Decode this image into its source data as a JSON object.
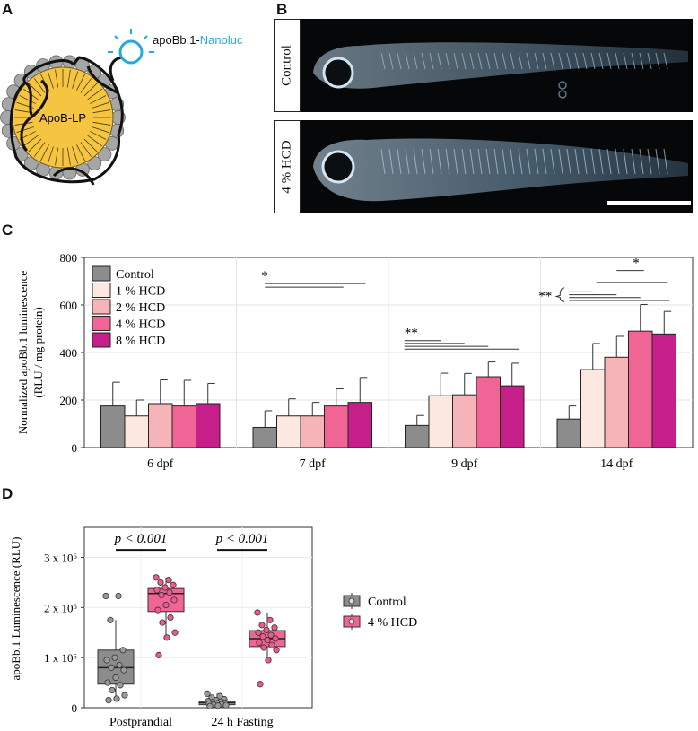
{
  "panels": {
    "a": {
      "letter": "A",
      "particle_label": "ApoB-LP",
      "tag_prefix": "apoBb.1-",
      "tag_suffix": "Nanoluc"
    },
    "b": {
      "letter": "B",
      "image_labels": [
        "Control",
        "4 % HCD"
      ]
    },
    "c": {
      "letter": "C"
    },
    "d": {
      "letter": "D"
    }
  },
  "colors": {
    "control": "#8c8c8c",
    "hcd1": "#fde8df",
    "hcd2": "#f6b4b8",
    "hcd4": "#f06595",
    "hcd8": "#c71f8a",
    "nanoluc": "#29a8e0",
    "particle": "#f5c542",
    "bead": "#a6a6a6"
  },
  "chart_data": [
    {
      "type": "bar",
      "ylabel": "Normalized apoBb.1 luminescence\n(RLU / mg protein)",
      "ylim": [
        0,
        800
      ],
      "yticks": [
        "0",
        "200",
        "400",
        "600",
        "800"
      ],
      "categories": [
        "6 dpf",
        "7 dpf",
        "9 dpf",
        "14 dpf"
      ],
      "legend": "top-left",
      "grid": true,
      "series": [
        {
          "name": "Control",
          "values": [
            175,
            85,
            93,
            120
          ],
          "err": [
            100,
            70,
            42,
            55
          ]
        },
        {
          "name": "1 % HCD",
          "values": [
            133,
            133,
            218,
            328
          ],
          "err": [
            67,
            72,
            95,
            110
          ]
        },
        {
          "name": "2 % HCD",
          "values": [
            185,
            133,
            222,
            380
          ],
          "err": [
            100,
            57,
            90,
            88
          ]
        },
        {
          "name": "4 % HCD",
          "values": [
            175,
            175,
            298,
            490
          ],
          "err": [
            108,
            72,
            62,
            112
          ]
        },
        {
          "name": "8 % HCD",
          "values": [
            185,
            190,
            260,
            478
          ],
          "err": [
            85,
            105,
            95,
            95
          ]
        }
      ],
      "annotations": [
        "*",
        "**",
        "**",
        "*"
      ]
    },
    {
      "type": "box",
      "ylabel": "apoBb.1 Luminescence (RLU)",
      "yticks": [
        "0",
        "1 x 10⁶",
        "2 x 10⁶",
        "3 x 10⁶"
      ],
      "ylim": [
        0,
        3600000
      ],
      "categories": [
        "Postprandial",
        "24 h Fasting"
      ],
      "legend": "right",
      "series": [
        {
          "name": "Control",
          "boxes": [
            {
              "min": 150000,
              "q1": 470000,
              "median": 800000,
              "q3": 1150000,
              "max": 1750000,
              "points": [
                2230000,
                2230000,
                1750000,
                1150000,
                1000000,
                950000,
                850000,
                800000,
                750000,
                600000,
                500000,
                450000,
                350000,
                250000,
                180000,
                150000
              ]
            },
            {
              "min": 30000,
              "q1": 60000,
              "median": 100000,
              "q3": 130000,
              "max": 280000,
              "points": [
                280000,
                230000,
                200000,
                170000,
                150000,
                130000,
                120000,
                110000,
                100000,
                90000,
                80000,
                70000,
                60000,
                50000,
                40000,
                30000
              ]
            }
          ]
        },
        {
          "name": "4 % HCD",
          "boxes": [
            {
              "min": 1450000,
              "q1": 1920000,
              "median": 2280000,
              "q3": 2380000,
              "max": 2600000,
              "points": [
                2600000,
                2550000,
                2500000,
                2450000,
                2400000,
                2350000,
                2300000,
                2250000,
                2150000,
                2050000,
                1950000,
                1800000,
                1700000,
                1500000,
                1400000,
                1050000
              ]
            },
            {
              "min": 950000,
              "q1": 1220000,
              "median": 1380000,
              "q3": 1540000,
              "max": 1900000,
              "points": [
                1900000,
                1750000,
                1650000,
                1600000,
                1550000,
                1500000,
                1450000,
                1420000,
                1380000,
                1350000,
                1300000,
                1250000,
                1200000,
                1150000,
                950000,
                470000
              ]
            }
          ]
        }
      ],
      "annotations": [
        "p < 0.001",
        "p < 0.001"
      ]
    }
  ]
}
